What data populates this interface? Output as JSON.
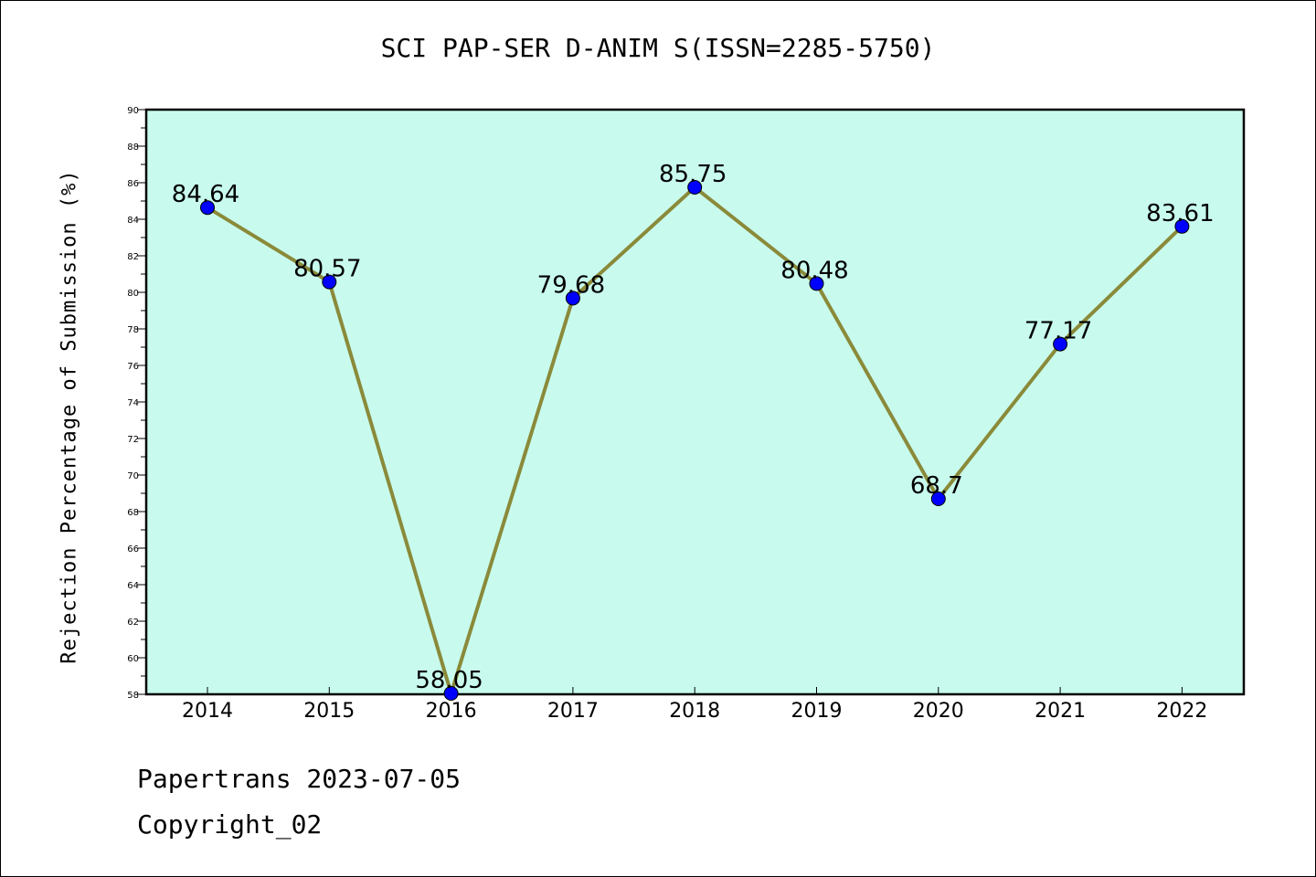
{
  "chart_data": {
    "type": "line",
    "title": "SCI PAP-SER D-ANIM S(ISSN=2285-5750)",
    "xlabel": "",
    "ylabel": "Rejection Percentage of Submission (%)",
    "categories": [
      "2014",
      "2015",
      "2016",
      "2017",
      "2018",
      "2019",
      "2020",
      "2021",
      "2022"
    ],
    "values": [
      84.64,
      80.57,
      58.05,
      79.68,
      85.75,
      80.48,
      68.7,
      77.17,
      83.61
    ],
    "value_labels": [
      "84.64",
      "80.57",
      "58.05",
      "79.68",
      "85.75",
      "80.48",
      "68.7",
      "77.17",
      "83.61"
    ],
    "ylim": [
      58,
      90
    ],
    "ytick_step": 2,
    "grid": false,
    "colors": {
      "plot_background": "#c8fbee",
      "line": "#8a8a3a",
      "marker": "#0000ff"
    }
  },
  "footer": {
    "date_text": "Papertrans 2023-07-05",
    "copyright_text": "Copyright_02"
  }
}
